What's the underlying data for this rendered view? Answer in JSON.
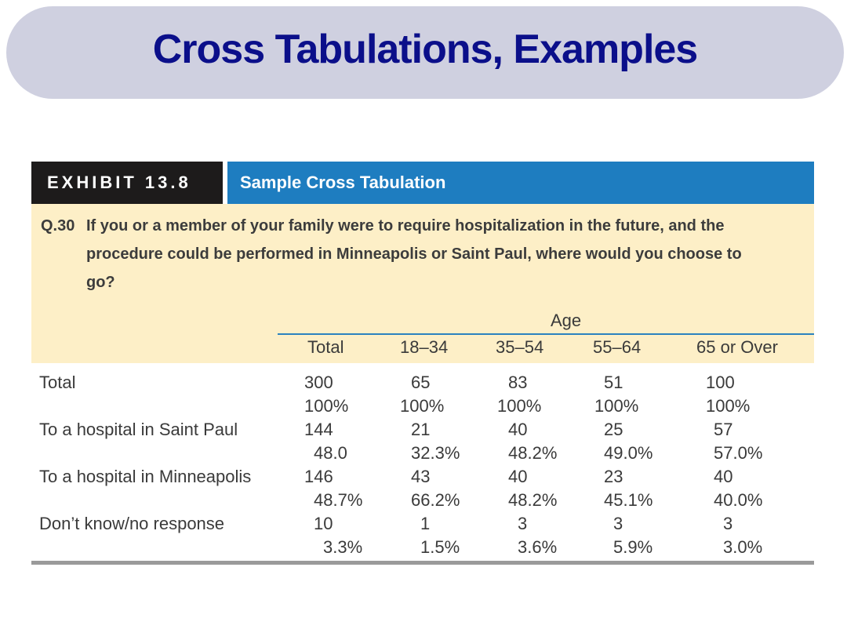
{
  "slide": {
    "title": "Cross Tabulations, Examples"
  },
  "exhibit": {
    "tag": "EXHIBIT 13.8",
    "caption": "Sample Cross Tabulation",
    "question_number": "Q.30",
    "question_text": "If you or a member of your family were to require hospitalization in the future, and the procedure could be performed in Minneapolis or Saint Paul, where would you choose to go?",
    "group_label": "Age",
    "columns": [
      "Total",
      "18–34",
      "35–54",
      "55–64",
      "65 or Over"
    ],
    "rows": [
      {
        "label": "Total",
        "counts": [
          "300",
          "65",
          "83",
          "51",
          "100"
        ],
        "percents": [
          "100%",
          "100%",
          "100%",
          "100%",
          "100%"
        ]
      },
      {
        "label": "To a hospital in Saint Paul",
        "counts": [
          "144",
          "21",
          "40",
          "25",
          "57"
        ],
        "percents": [
          "48.0",
          "32.3%",
          "48.2%",
          "49.0%",
          "57.0%"
        ]
      },
      {
        "label": "To a hospital in Minneapolis",
        "counts": [
          "146",
          "43",
          "40",
          "23",
          "40"
        ],
        "percents": [
          "48.7%",
          "66.2%",
          "48.2%",
          "45.1%",
          "40.0%"
        ]
      },
      {
        "label": "Don’t know/no response",
        "counts": [
          "10",
          "1",
          "3",
          "3",
          "3"
        ],
        "percents": [
          "3.3%",
          "1.5%",
          "3.6%",
          "5.9%",
          "3.0%"
        ]
      }
    ]
  },
  "colors": {
    "title_text": "#0b0f8a",
    "title_band": "#cfd0e0",
    "exhibit_tag_bg": "#1d1b1b",
    "caption_bg": "#1e7dc0",
    "question_bg": "#fdefc7"
  }
}
